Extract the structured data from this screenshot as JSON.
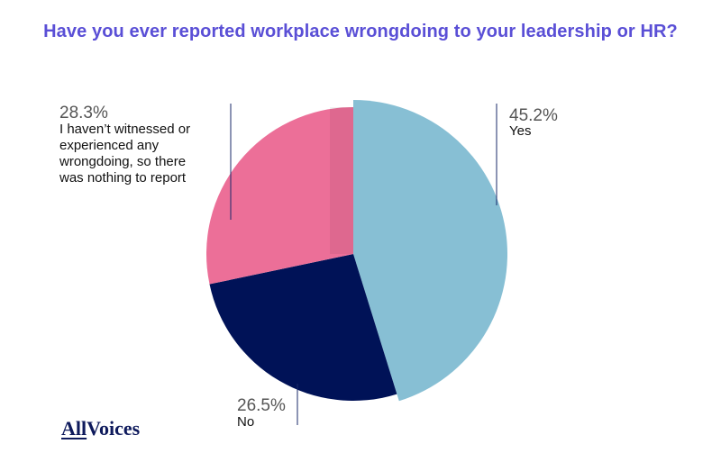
{
  "chart_data": {
    "type": "pie",
    "title": "Have you ever reported workplace wrongdoing to your leadership or HR?",
    "slices": [
      {
        "label": "Yes",
        "value": 45.2,
        "value_label": "45.2%",
        "color": "#87bfd4",
        "exploded": true
      },
      {
        "label": "No",
        "value": 26.5,
        "value_label": "26.5%",
        "color": "#001257",
        "exploded": false
      },
      {
        "label": "I haven't witnessed or experienced any wrongdoing, so there was nothing to report",
        "value": 28.3,
        "value_label": "28.3%",
        "color": "#ec6f98",
        "exploded": false
      }
    ]
  },
  "branding": {
    "logo_text_1": "All",
    "logo_text_2": "Voices"
  }
}
